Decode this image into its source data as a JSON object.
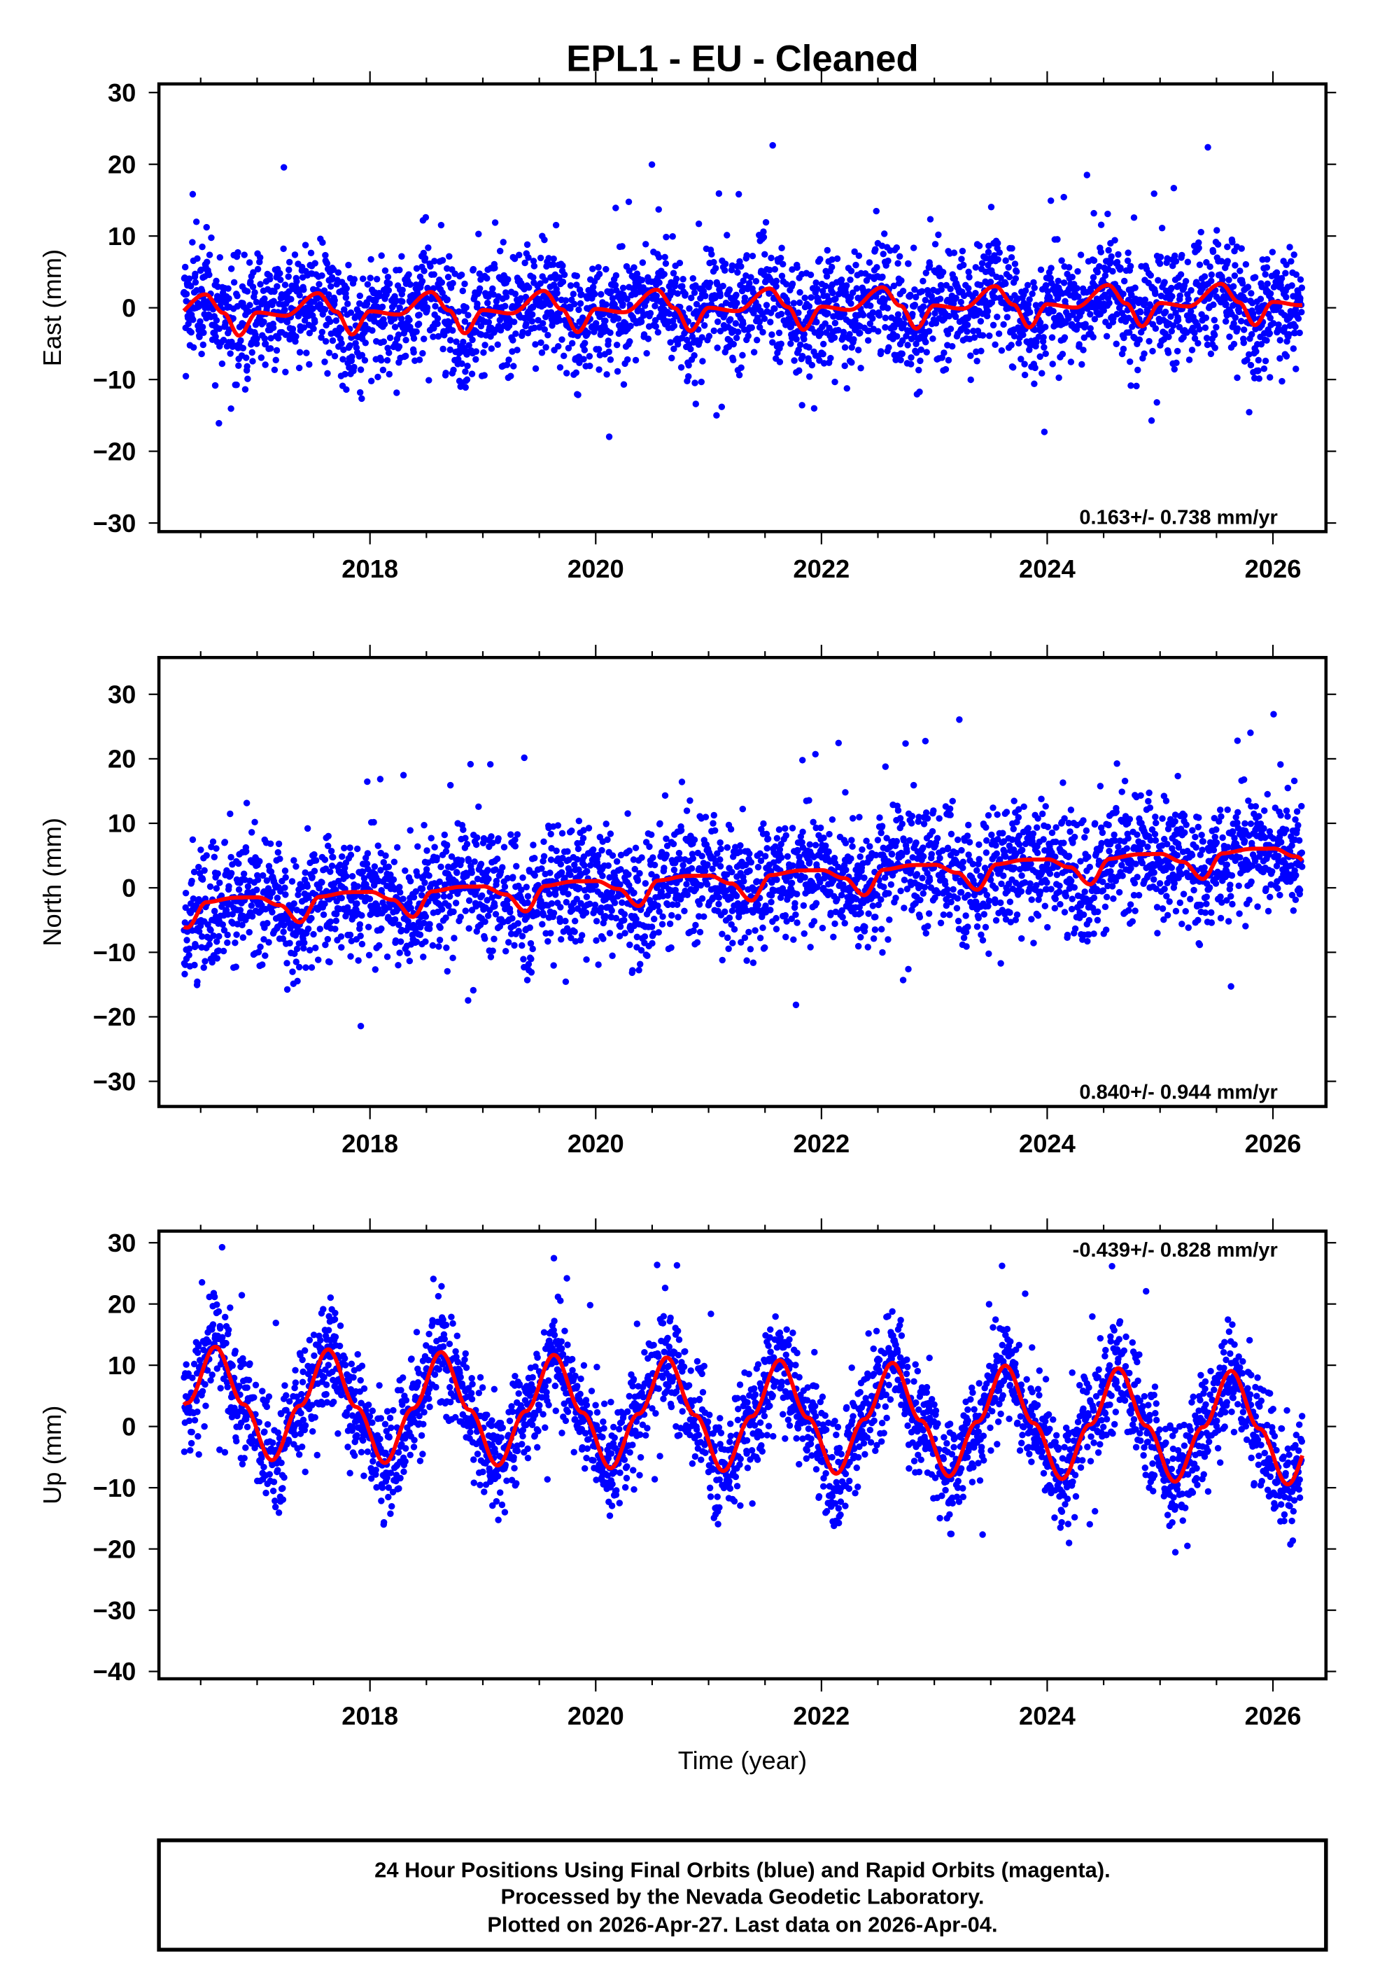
{
  "title": "EPL1  - EU - Cleaned",
  "xlabel": "Time (year)",
  "footer": {
    "lines": [
      "24 Hour Positions Using Final Orbits (blue) and Rapid Orbits (magenta).",
      "Processed by the Nevada Geodetic Laboratory.",
      "Plotted on 2026-Apr-27. Last data on 2026-Apr-04."
    ]
  },
  "colors": {
    "points": "#0000ff",
    "fit": "#ff0000",
    "frame": "#000000"
  },
  "chart_data": [
    {
      "type": "scatter",
      "ylabel": "East (mm)",
      "rate_label": "0.163+/- 0.738 mm/yr",
      "xlim": [
        2016.13,
        2026.47
      ],
      "ylim": [
        -31.2,
        31.2
      ],
      "xticks": [
        2018,
        2020,
        2022,
        2024,
        2026
      ],
      "xtick_labels": [
        "2018",
        "2020",
        "2022",
        "2024",
        "2026"
      ],
      "yticks": [
        -30,
        -20,
        -10,
        0,
        10,
        20,
        30
      ],
      "ytick_labels": [
        "−30",
        "−20",
        "−10",
        "0",
        "10",
        "20",
        "30"
      ],
      "data_range": [
        2016.35,
        2026.26
      ],
      "fit_model": {
        "offset": 0.0,
        "rate": 0.163,
        "ref_year": 2021.0,
        "seasonal_phase": [
          0.0,
          0.25,
          0.54,
          0.7,
          0.84
        ],
        "seasonal_value": [
          0.0,
          -0.5,
          2.6,
          0.0,
          -3.2
        ]
      },
      "scatter_sigma": 5.5
    },
    {
      "type": "scatter",
      "ylabel": "North (mm)",
      "rate_label": "0.840+/- 0.944 mm/yr",
      "xlim": [
        2016.13,
        2026.47
      ],
      "ylim": [
        -33.9,
        35.7
      ],
      "xticks": [
        2018,
        2020,
        2022,
        2024,
        2026
      ],
      "xtick_labels": [
        "2018",
        "2020",
        "2022",
        "2024",
        "2026"
      ],
      "yticks": [
        -30,
        -20,
        -10,
        0,
        10,
        20,
        30
      ],
      "ytick_labels": [
        "−30",
        "−20",
        "−10",
        "0",
        "10",
        "20",
        "30"
      ],
      "data_range": [
        2016.35,
        2026.26
      ],
      "fit_model": {
        "offset": 1.5,
        "rate": 0.84,
        "ref_year": 2021.0,
        "seasonal_phase": [
          0.0,
          0.2,
          0.38,
          0.55,
          0.8
        ],
        "seasonal_value": [
          0.4,
          -1.0,
          -3.8,
          0.0,
          0.5
        ]
      },
      "scatter_sigma": 6.5
    },
    {
      "type": "scatter",
      "ylabel": "Up (mm)",
      "rate_label": "-0.439+/- 0.828 mm/yr",
      "xlim": [
        2016.13,
        2026.47
      ],
      "ylim": [
        -41.2,
        31.9
      ],
      "xticks": [
        2018,
        2020,
        2022,
        2024,
        2026
      ],
      "xtick_labels": [
        "2018",
        "2020",
        "2022",
        "2024",
        "2026"
      ],
      "yticks": [
        -40,
        -30,
        -20,
        -10,
        0,
        10,
        20,
        30
      ],
      "ytick_labels": [
        "−40",
        "−30",
        "−20",
        "−10",
        "0",
        "10",
        "20",
        "30"
      ],
      "data_range": [
        2016.35,
        2026.26
      ],
      "fit_model": {
        "offset": 1.8,
        "rate": -0.439,
        "ref_year": 2021.0,
        "seasonal_phase": [
          0.13,
          0.38,
          0.63,
          0.88
        ],
        "seasonal_value": [
          -9.0,
          0.0,
          9.3,
          0.0
        ]
      },
      "scatter_sigma": 6.0
    }
  ]
}
